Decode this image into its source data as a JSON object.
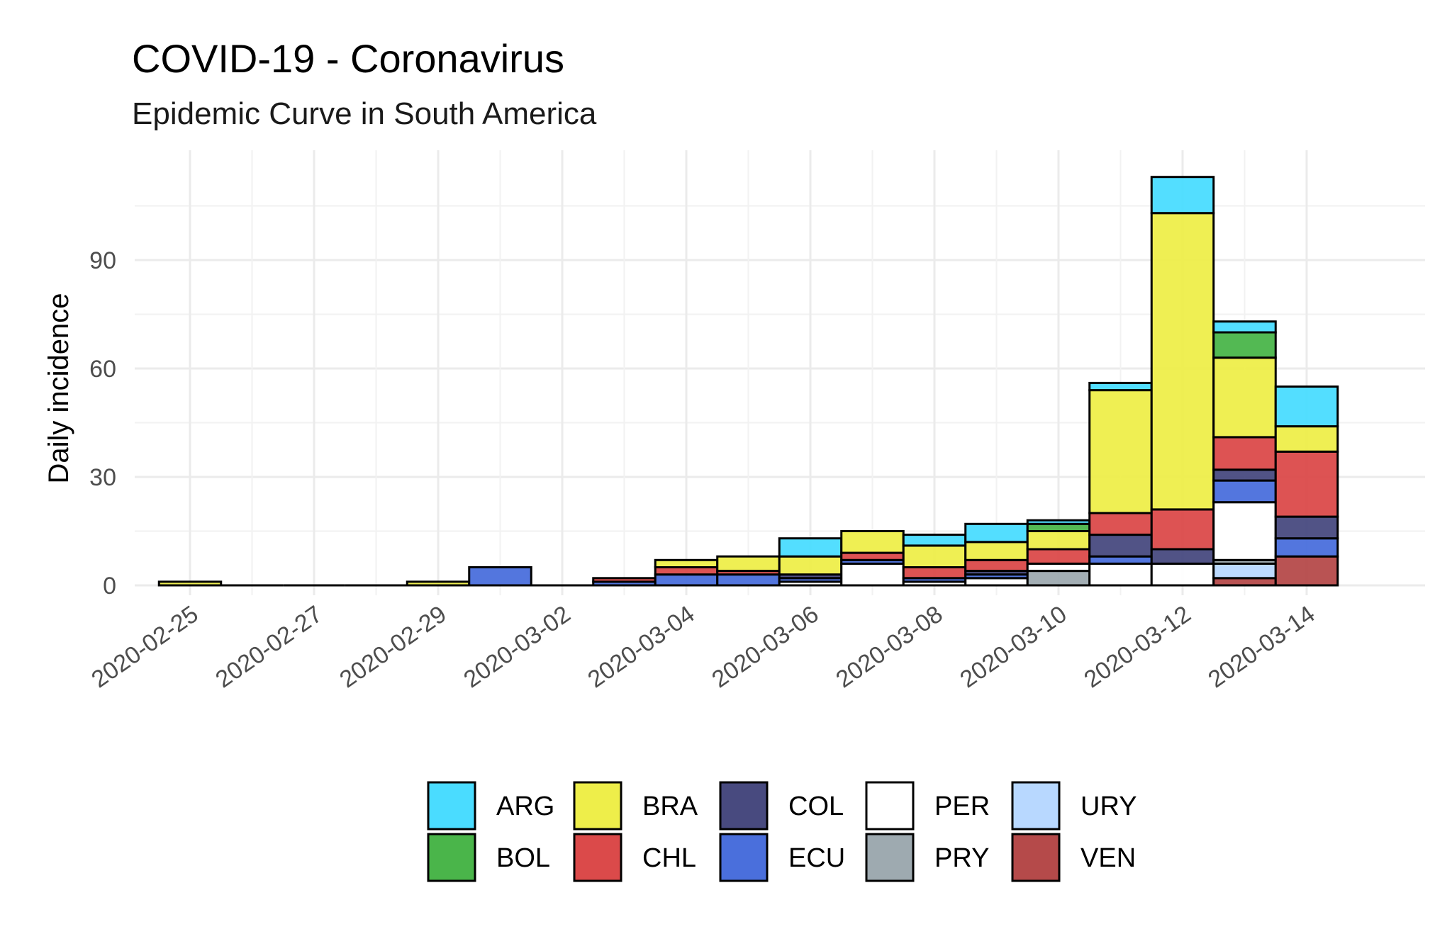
{
  "chart_data": {
    "type": "bar",
    "stacked": true,
    "title": "COVID-19 - Coronavirus",
    "subtitle": "Epidemic Curve in South America",
    "xlabel": "",
    "ylabel": "Daily incidence",
    "ylim": [
      -3,
      116
    ],
    "yticks": [
      0,
      30,
      60,
      90
    ],
    "grid": true,
    "legend_position": "bottom",
    "x_tick_labels": [
      "2020-02-25",
      "2020-02-27",
      "2020-02-29",
      "2020-03-02",
      "2020-03-04",
      "2020-03-06",
      "2020-03-08",
      "2020-03-10",
      "2020-03-12",
      "2020-03-14"
    ],
    "categories": [
      "2020-02-25",
      "2020-02-26",
      "2020-02-27",
      "2020-02-28",
      "2020-02-29",
      "2020-03-01",
      "2020-03-02",
      "2020-03-03",
      "2020-03-04",
      "2020-03-05",
      "2020-03-06",
      "2020-03-07",
      "2020-03-08",
      "2020-03-09",
      "2020-03-10",
      "2020-03-11",
      "2020-03-12",
      "2020-03-13",
      "2020-03-14"
    ],
    "series": [
      {
        "name": "VEN",
        "color": "#b54a4a",
        "values": [
          0,
          0,
          0,
          0,
          0,
          0,
          0,
          0,
          0,
          0,
          0,
          0,
          0,
          0,
          0,
          0,
          0,
          2,
          8
        ]
      },
      {
        "name": "URY",
        "color": "#b8d8ff",
        "values": [
          0,
          0,
          0,
          0,
          0,
          0,
          0,
          0,
          0,
          0,
          0,
          0,
          0,
          0,
          0,
          0,
          0,
          4,
          0
        ]
      },
      {
        "name": "PRY",
        "color": "#9eaab0",
        "values": [
          0,
          0,
          0,
          0,
          0,
          0,
          0,
          0,
          0,
          0,
          0,
          0,
          0,
          0,
          4,
          0,
          0,
          1,
          0
        ]
      },
      {
        "name": "PER",
        "color": "#ffffff",
        "values": [
          0,
          0,
          0,
          0,
          0,
          0,
          0,
          0,
          0,
          0,
          1,
          6,
          1,
          2,
          2,
          6,
          6,
          16,
          0
        ]
      },
      {
        "name": "ECU",
        "color": "#4a6fdc",
        "values": [
          0,
          0,
          0,
          0,
          0,
          5,
          0,
          1,
          3,
          3,
          1,
          1,
          1,
          1,
          0,
          2,
          0,
          6,
          5
        ]
      },
      {
        "name": "COL",
        "color": "#484a7f",
        "values": [
          0,
          0,
          0,
          0,
          0,
          0,
          0,
          0,
          0,
          0,
          1,
          0,
          0,
          1,
          0,
          6,
          4,
          3,
          6
        ]
      },
      {
        "name": "CHL",
        "color": "#db4a4a",
        "values": [
          0,
          0,
          0,
          0,
          0,
          0,
          0,
          1,
          2,
          1,
          0,
          2,
          3,
          3,
          4,
          6,
          11,
          9,
          18
        ]
      },
      {
        "name": "BRA",
        "color": "#eeee4a",
        "values": [
          1,
          0,
          0,
          0,
          1,
          0,
          0,
          0,
          2,
          4,
          5,
          6,
          6,
          5,
          5,
          34,
          82,
          22,
          7
        ]
      },
      {
        "name": "BOL",
        "color": "#4ab54a",
        "values": [
          0,
          0,
          0,
          0,
          0,
          0,
          0,
          0,
          0,
          0,
          0,
          0,
          0,
          0,
          2,
          0,
          0,
          7,
          0
        ]
      },
      {
        "name": "ARG",
        "color": "#4adcff",
        "values": [
          0,
          0,
          0,
          0,
          0,
          0,
          0,
          0,
          0,
          0,
          5,
          0,
          3,
          5,
          1,
          2,
          10,
          3,
          11
        ]
      }
    ],
    "legend": [
      {
        "name": "ARG",
        "color": "#4adcff"
      },
      {
        "name": "BOL",
        "color": "#4ab54a"
      },
      {
        "name": "BRA",
        "color": "#eeee4a"
      },
      {
        "name": "CHL",
        "color": "#db4a4a"
      },
      {
        "name": "COL",
        "color": "#484a7f"
      },
      {
        "name": "ECU",
        "color": "#4a6fdc"
      },
      {
        "name": "PER",
        "color": "#ffffff"
      },
      {
        "name": "PRY",
        "color": "#9eaab0"
      },
      {
        "name": "URY",
        "color": "#b8d8ff"
      },
      {
        "name": "VEN",
        "color": "#b54a4a"
      }
    ]
  }
}
